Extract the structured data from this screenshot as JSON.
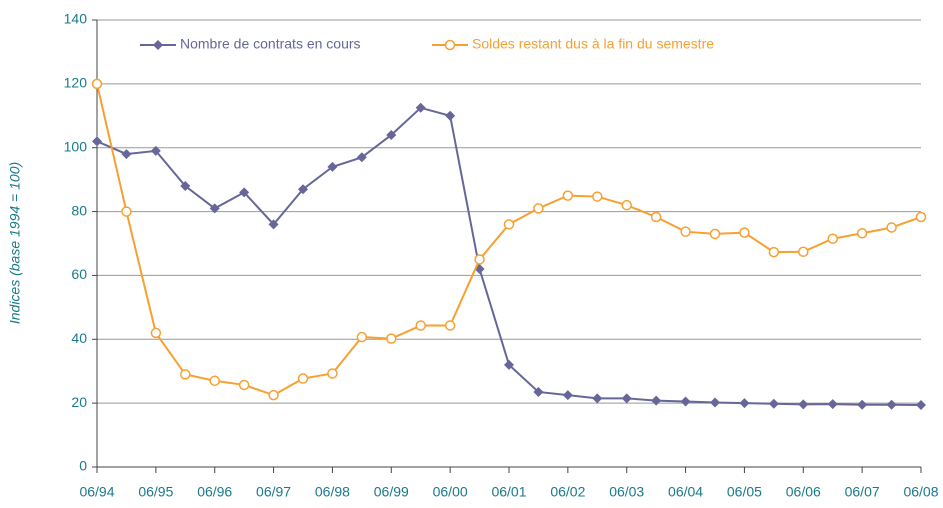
{
  "chart_data": {
    "type": "line",
    "y_label": "Indices (base 1994 = 100)",
    "categories": [
      "06/94",
      null,
      "06/95",
      null,
      "06/96",
      null,
      "06/97",
      null,
      "06/98",
      null,
      "06/99",
      null,
      "06/00",
      null,
      "06/01",
      null,
      "06/02",
      null,
      "06/03",
      null,
      "06/04",
      null,
      "06/05",
      null,
      "06/06",
      null,
      "06/07",
      null,
      "06/08"
    ],
    "series": [
      {
        "name": "Nombre de contrats en cours",
        "color": "#666699",
        "marker": "diamond",
        "values": [
          102,
          98,
          99,
          88,
          81,
          86,
          76,
          87,
          94,
          97,
          104,
          112.5,
          110,
          62,
          32,
          23.5,
          22.5,
          21.5,
          21.5,
          20.8,
          20.5,
          20.2,
          20,
          19.8,
          19.6,
          19.7,
          19.5,
          19.5,
          19.4
        ]
      },
      {
        "name": "Soldes restant dus à la fin du semestre",
        "color": "#f7a030",
        "marker": "circle",
        "values": [
          120,
          80,
          42,
          29,
          27,
          25.7,
          22.5,
          27.7,
          29.3,
          40.7,
          40.2,
          44.3,
          44.3,
          65,
          76,
          81,
          85,
          84.7,
          82,
          78.3,
          73.7,
          73,
          73.4,
          67.3,
          67.4,
          71.5,
          73.2,
          75,
          78.3
        ]
      }
    ],
    "ylim": [
      0,
      140
    ],
    "yticks": [
      0,
      20,
      40,
      60,
      80,
      100,
      120,
      140
    ],
    "grid": true,
    "legend": "top"
  }
}
